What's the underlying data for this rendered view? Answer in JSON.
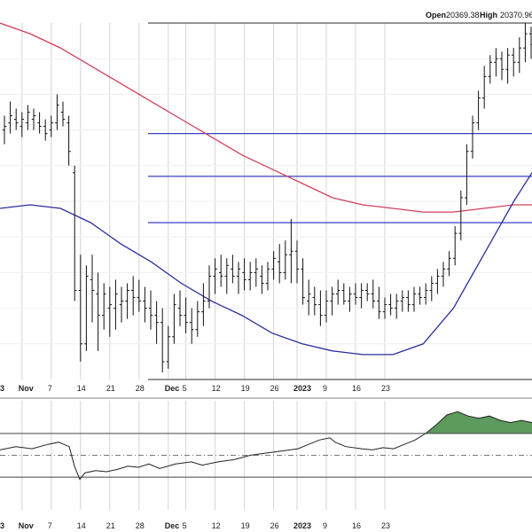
{
  "header": {
    "open_label": "Open",
    "open_value": "20369.38",
    "high_label": "High",
    "high_value": "20370.96"
  },
  "colors": {
    "bar": "#111111",
    "ma_fast": "#2b2f9e",
    "ma_slow": "#d1405c",
    "hline": "#3a3fc4",
    "indicator": "#222222",
    "overbought_fill": "#5d9a5d",
    "grid": "#d4d4d4"
  },
  "chart_data": [
    {
      "type": "ohlc",
      "x_labels": [
        {
          "day": 3,
          "label": "Nov"
        },
        {
          "day": 8,
          "label": "7"
        },
        {
          "day": 13,
          "label": "14"
        },
        {
          "day": 18,
          "label": "21"
        },
        {
          "day": 23,
          "label": "28"
        },
        {
          "day": 28,
          "label": "Dec"
        },
        {
          "day": 31,
          "label": "5"
        },
        {
          "day": 36,
          "label": "12"
        },
        {
          "day": 41,
          "label": "19"
        },
        {
          "day": 46,
          "label": "26"
        },
        {
          "day": 50,
          "label": "2023"
        },
        {
          "day": 55,
          "label": "9"
        },
        {
          "day": 60,
          "label": "16"
        },
        {
          "day": 65,
          "label": "23"
        }
      ],
      "first_label_fragment": "3",
      "ylim": [
        0,
        100
      ],
      "bars": [
        [
          70,
          74,
          66,
          71
        ],
        [
          72,
          78,
          69,
          74
        ],
        [
          73,
          76,
          70,
          72
        ],
        [
          71,
          75,
          68,
          73
        ],
        [
          72,
          77,
          70,
          75
        ],
        [
          73,
          76,
          70,
          74
        ],
        [
          72,
          75,
          69,
          71
        ],
        [
          71,
          73,
          67,
          69
        ],
        [
          70,
          74,
          68,
          72
        ],
        [
          72,
          80,
          70,
          77
        ],
        [
          75,
          78,
          71,
          73
        ],
        [
          72,
          74,
          60,
          64
        ],
        [
          58,
          60,
          22,
          25
        ],
        [
          25,
          35,
          5,
          10
        ],
        [
          10,
          32,
          8,
          29
        ],
        [
          28,
          35,
          16,
          25
        ],
        [
          24,
          30,
          8,
          18
        ],
        [
          18,
          27,
          14,
          24
        ],
        [
          20,
          26,
          12,
          21
        ],
        [
          20,
          28,
          14,
          24
        ],
        [
          21,
          26,
          16,
          22
        ],
        [
          22,
          27,
          17,
          25
        ],
        [
          25,
          29,
          18,
          23
        ],
        [
          23,
          28,
          19,
          22
        ],
        [
          22,
          26,
          16,
          20
        ],
        [
          20,
          25,
          14,
          18
        ],
        [
          18,
          22,
          10,
          16
        ],
        [
          16,
          20,
          2,
          5
        ],
        [
          5,
          15,
          3,
          12
        ],
        [
          12,
          24,
          10,
          21
        ],
        [
          20,
          25,
          15,
          18
        ],
        [
          18,
          23,
          13,
          16
        ],
        [
          16,
          20,
          10,
          14
        ],
        [
          14,
          22,
          12,
          19
        ],
        [
          19,
          27,
          15,
          22
        ],
        [
          22,
          32,
          20,
          29
        ],
        [
          29,
          34,
          24,
          31
        ],
        [
          30,
          35,
          26,
          29
        ],
        [
          29,
          34,
          24,
          32
        ],
        [
          31,
          35,
          27,
          29
        ],
        [
          29,
          33,
          24,
          31
        ],
        [
          30,
          34,
          25,
          28
        ],
        [
          28,
          33,
          25,
          30
        ],
        [
          30,
          34,
          26,
          31
        ],
        [
          29,
          32,
          24,
          27
        ],
        [
          27,
          33,
          25,
          31
        ],
        [
          31,
          36,
          28,
          34
        ],
        [
          33,
          38,
          27,
          30
        ],
        [
          30,
          39,
          28,
          35
        ],
        [
          35,
          45,
          27,
          36
        ],
        [
          36,
          39,
          27,
          31
        ],
        [
          31,
          34,
          21,
          23
        ],
        [
          22,
          28,
          18,
          24
        ],
        [
          23,
          26,
          18,
          21
        ],
        [
          21,
          25,
          15,
          18
        ],
        [
          18,
          25,
          16,
          22
        ],
        [
          22,
          26,
          18,
          24
        ],
        [
          24,
          28,
          21,
          25
        ],
        [
          25,
          27,
          21,
          22
        ],
        [
          22,
          26,
          19,
          24
        ],
        [
          24,
          27,
          21,
          23
        ],
        [
          23,
          27,
          20,
          25
        ],
        [
          25,
          27,
          22,
          24
        ],
        [
          24,
          28,
          20,
          22
        ],
        [
          22,
          26,
          17,
          19
        ],
        [
          19,
          23,
          17,
          21
        ],
        [
          21,
          24,
          18,
          20
        ],
        [
          20,
          24,
          17,
          22
        ],
        [
          22,
          25,
          19,
          23
        ],
        [
          23,
          25,
          19,
          21
        ],
        [
          21,
          26,
          19,
          24
        ],
        [
          24,
          26,
          21,
          23
        ],
        [
          23,
          27,
          21,
          25
        ],
        [
          25,
          29,
          22,
          27
        ],
        [
          27,
          31,
          24,
          29
        ],
        [
          29,
          33,
          26,
          31
        ],
        [
          31,
          36,
          29,
          34
        ],
        [
          34,
          43,
          32,
          41
        ],
        [
          41,
          53,
          39,
          51
        ],
        [
          51,
          66,
          49,
          64
        ],
        [
          64,
          74,
          62,
          72
        ],
        [
          72,
          81,
          70,
          79
        ],
        [
          79,
          88,
          76,
          85
        ],
        [
          85,
          91,
          83,
          89
        ],
        [
          89,
          93,
          85,
          90
        ],
        [
          90,
          92,
          84,
          87
        ],
        [
          87,
          93,
          83,
          91
        ],
        [
          91,
          93,
          85,
          89
        ],
        [
          89,
          96,
          86,
          93
        ],
        [
          93,
          100,
          89,
          97
        ],
        [
          97,
          99,
          90,
          94
        ],
        [
          94,
          97,
          89,
          92
        ],
        [
          92,
          98,
          90,
          95
        ],
        [
          95,
          97,
          91,
          94
        ]
      ],
      "ma_fast": [
        [
          0,
          48
        ],
        [
          5,
          49
        ],
        [
          10,
          48
        ],
        [
          15,
          44
        ],
        [
          20,
          38
        ],
        [
          25,
          33
        ],
        [
          30,
          27
        ],
        [
          35,
          22
        ],
        [
          40,
          18
        ],
        [
          45,
          13
        ],
        [
          50,
          10
        ],
        [
          55,
          8
        ],
        [
          60,
          7
        ],
        [
          65,
          7
        ],
        [
          70,
          10
        ],
        [
          75,
          20
        ],
        [
          80,
          35
        ],
        [
          85,
          50
        ],
        [
          88,
          58
        ]
      ],
      "ma_slow": [
        [
          0,
          100
        ],
        [
          5,
          97
        ],
        [
          10,
          93
        ],
        [
          15,
          88
        ],
        [
          20,
          83
        ],
        [
          25,
          78
        ],
        [
          30,
          73
        ],
        [
          35,
          68
        ],
        [
          40,
          63
        ],
        [
          45,
          59
        ],
        [
          50,
          55
        ],
        [
          55,
          51
        ],
        [
          60,
          49
        ],
        [
          65,
          48
        ],
        [
          70,
          47
        ],
        [
          75,
          47
        ],
        [
          80,
          48
        ],
        [
          85,
          49
        ],
        [
          88,
          49
        ]
      ],
      "hlines": [
        100,
        69,
        57,
        44,
        0
      ]
    },
    {
      "type": "line",
      "ylim": [
        0,
        100
      ],
      "levels": [
        70,
        50,
        30
      ],
      "values": [
        [
          0,
          55
        ],
        [
          3,
          58
        ],
        [
          6,
          56
        ],
        [
          9,
          60
        ],
        [
          11,
          62
        ],
        [
          13,
          58
        ],
        [
          14,
          40
        ],
        [
          15,
          28
        ],
        [
          16,
          34
        ],
        [
          18,
          36
        ],
        [
          20,
          35
        ],
        [
          22,
          37
        ],
        [
          24,
          40
        ],
        [
          26,
          39
        ],
        [
          28,
          42
        ],
        [
          30,
          38
        ],
        [
          33,
          42
        ],
        [
          36,
          44
        ],
        [
          38,
          41
        ],
        [
          41,
          44
        ],
        [
          44,
          46
        ],
        [
          47,
          50
        ],
        [
          50,
          52
        ],
        [
          53,
          54
        ],
        [
          56,
          56
        ],
        [
          58,
          60
        ],
        [
          60,
          64
        ],
        [
          62,
          66
        ],
        [
          63,
          62
        ],
        [
          65,
          58
        ],
        [
          68,
          56
        ],
        [
          70,
          55
        ],
        [
          72,
          57
        ],
        [
          74,
          56
        ],
        [
          76,
          60
        ],
        [
          78,
          64
        ],
        [
          80,
          70
        ],
        [
          82,
          78
        ],
        [
          84,
          87
        ],
        [
          86,
          90
        ],
        [
          88,
          86
        ],
        [
          90,
          84
        ],
        [
          92,
          86
        ],
        [
          94,
          82
        ],
        [
          96,
          80
        ],
        [
          98,
          82
        ],
        [
          100,
          80
        ]
      ]
    }
  ]
}
